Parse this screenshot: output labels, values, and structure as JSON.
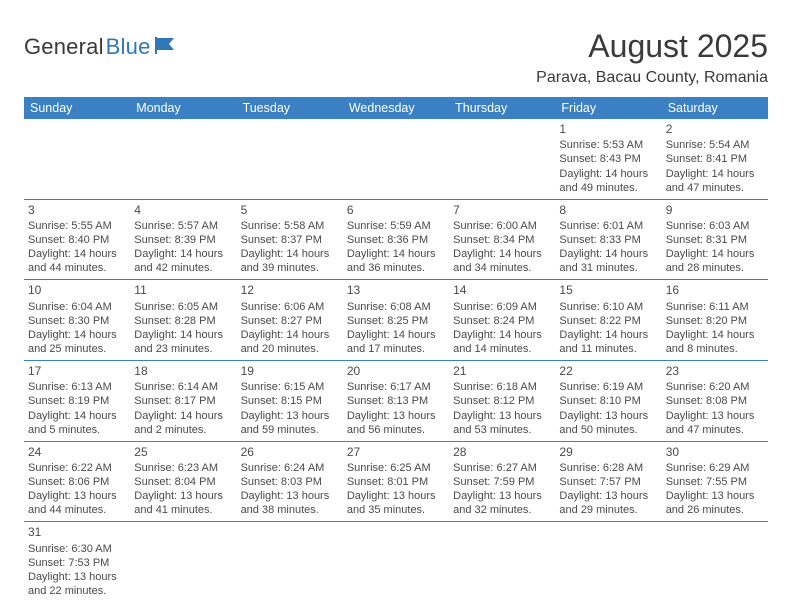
{
  "brand": {
    "part1": "General",
    "part2": "Blue"
  },
  "title": "August 2025",
  "location": "Parava, Bacau County, Romania",
  "colors": {
    "header_bg": "#3a80c3",
    "header_text": "#ffffff",
    "row_border": "#3a80c3",
    "text": "#414141",
    "brand_blue": "#2f77b8"
  },
  "weekdays": [
    "Sunday",
    "Monday",
    "Tuesday",
    "Wednesday",
    "Thursday",
    "Friday",
    "Saturday"
  ],
  "weeks": [
    [
      null,
      null,
      null,
      null,
      null,
      {
        "n": "1",
        "sunrise": "Sunrise: 5:53 AM",
        "sunset": "Sunset: 8:43 PM",
        "day1": "Daylight: 14 hours",
        "day2": "and 49 minutes."
      },
      {
        "n": "2",
        "sunrise": "Sunrise: 5:54 AM",
        "sunset": "Sunset: 8:41 PM",
        "day1": "Daylight: 14 hours",
        "day2": "and 47 minutes."
      }
    ],
    [
      {
        "n": "3",
        "sunrise": "Sunrise: 5:55 AM",
        "sunset": "Sunset: 8:40 PM",
        "day1": "Daylight: 14 hours",
        "day2": "and 44 minutes."
      },
      {
        "n": "4",
        "sunrise": "Sunrise: 5:57 AM",
        "sunset": "Sunset: 8:39 PM",
        "day1": "Daylight: 14 hours",
        "day2": "and 42 minutes."
      },
      {
        "n": "5",
        "sunrise": "Sunrise: 5:58 AM",
        "sunset": "Sunset: 8:37 PM",
        "day1": "Daylight: 14 hours",
        "day2": "and 39 minutes."
      },
      {
        "n": "6",
        "sunrise": "Sunrise: 5:59 AM",
        "sunset": "Sunset: 8:36 PM",
        "day1": "Daylight: 14 hours",
        "day2": "and 36 minutes."
      },
      {
        "n": "7",
        "sunrise": "Sunrise: 6:00 AM",
        "sunset": "Sunset: 8:34 PM",
        "day1": "Daylight: 14 hours",
        "day2": "and 34 minutes."
      },
      {
        "n": "8",
        "sunrise": "Sunrise: 6:01 AM",
        "sunset": "Sunset: 8:33 PM",
        "day1": "Daylight: 14 hours",
        "day2": "and 31 minutes."
      },
      {
        "n": "9",
        "sunrise": "Sunrise: 6:03 AM",
        "sunset": "Sunset: 8:31 PM",
        "day1": "Daylight: 14 hours",
        "day2": "and 28 minutes."
      }
    ],
    [
      {
        "n": "10",
        "sunrise": "Sunrise: 6:04 AM",
        "sunset": "Sunset: 8:30 PM",
        "day1": "Daylight: 14 hours",
        "day2": "and 25 minutes."
      },
      {
        "n": "11",
        "sunrise": "Sunrise: 6:05 AM",
        "sunset": "Sunset: 8:28 PM",
        "day1": "Daylight: 14 hours",
        "day2": "and 23 minutes."
      },
      {
        "n": "12",
        "sunrise": "Sunrise: 6:06 AM",
        "sunset": "Sunset: 8:27 PM",
        "day1": "Daylight: 14 hours",
        "day2": "and 20 minutes."
      },
      {
        "n": "13",
        "sunrise": "Sunrise: 6:08 AM",
        "sunset": "Sunset: 8:25 PM",
        "day1": "Daylight: 14 hours",
        "day2": "and 17 minutes."
      },
      {
        "n": "14",
        "sunrise": "Sunrise: 6:09 AM",
        "sunset": "Sunset: 8:24 PM",
        "day1": "Daylight: 14 hours",
        "day2": "and 14 minutes."
      },
      {
        "n": "15",
        "sunrise": "Sunrise: 6:10 AM",
        "sunset": "Sunset: 8:22 PM",
        "day1": "Daylight: 14 hours",
        "day2": "and 11 minutes."
      },
      {
        "n": "16",
        "sunrise": "Sunrise: 6:11 AM",
        "sunset": "Sunset: 8:20 PM",
        "day1": "Daylight: 14 hours",
        "day2": "and 8 minutes."
      }
    ],
    [
      {
        "n": "17",
        "sunrise": "Sunrise: 6:13 AM",
        "sunset": "Sunset: 8:19 PM",
        "day1": "Daylight: 14 hours",
        "day2": "and 5 minutes."
      },
      {
        "n": "18",
        "sunrise": "Sunrise: 6:14 AM",
        "sunset": "Sunset: 8:17 PM",
        "day1": "Daylight: 14 hours",
        "day2": "and 2 minutes."
      },
      {
        "n": "19",
        "sunrise": "Sunrise: 6:15 AM",
        "sunset": "Sunset: 8:15 PM",
        "day1": "Daylight: 13 hours",
        "day2": "and 59 minutes."
      },
      {
        "n": "20",
        "sunrise": "Sunrise: 6:17 AM",
        "sunset": "Sunset: 8:13 PM",
        "day1": "Daylight: 13 hours",
        "day2": "and 56 minutes."
      },
      {
        "n": "21",
        "sunrise": "Sunrise: 6:18 AM",
        "sunset": "Sunset: 8:12 PM",
        "day1": "Daylight: 13 hours",
        "day2": "and 53 minutes."
      },
      {
        "n": "22",
        "sunrise": "Sunrise: 6:19 AM",
        "sunset": "Sunset: 8:10 PM",
        "day1": "Daylight: 13 hours",
        "day2": "and 50 minutes."
      },
      {
        "n": "23",
        "sunrise": "Sunrise: 6:20 AM",
        "sunset": "Sunset: 8:08 PM",
        "day1": "Daylight: 13 hours",
        "day2": "and 47 minutes."
      }
    ],
    [
      {
        "n": "24",
        "sunrise": "Sunrise: 6:22 AM",
        "sunset": "Sunset: 8:06 PM",
        "day1": "Daylight: 13 hours",
        "day2": "and 44 minutes."
      },
      {
        "n": "25",
        "sunrise": "Sunrise: 6:23 AM",
        "sunset": "Sunset: 8:04 PM",
        "day1": "Daylight: 13 hours",
        "day2": "and 41 minutes."
      },
      {
        "n": "26",
        "sunrise": "Sunrise: 6:24 AM",
        "sunset": "Sunset: 8:03 PM",
        "day1": "Daylight: 13 hours",
        "day2": "and 38 minutes."
      },
      {
        "n": "27",
        "sunrise": "Sunrise: 6:25 AM",
        "sunset": "Sunset: 8:01 PM",
        "day1": "Daylight: 13 hours",
        "day2": "and 35 minutes."
      },
      {
        "n": "28",
        "sunrise": "Sunrise: 6:27 AM",
        "sunset": "Sunset: 7:59 PM",
        "day1": "Daylight: 13 hours",
        "day2": "and 32 minutes."
      },
      {
        "n": "29",
        "sunrise": "Sunrise: 6:28 AM",
        "sunset": "Sunset: 7:57 PM",
        "day1": "Daylight: 13 hours",
        "day2": "and 29 minutes."
      },
      {
        "n": "30",
        "sunrise": "Sunrise: 6:29 AM",
        "sunset": "Sunset: 7:55 PM",
        "day1": "Daylight: 13 hours",
        "day2": "and 26 minutes."
      }
    ],
    [
      {
        "n": "31",
        "sunrise": "Sunrise: 6:30 AM",
        "sunset": "Sunset: 7:53 PM",
        "day1": "Daylight: 13 hours",
        "day2": "and 22 minutes."
      },
      null,
      null,
      null,
      null,
      null,
      null
    ]
  ]
}
